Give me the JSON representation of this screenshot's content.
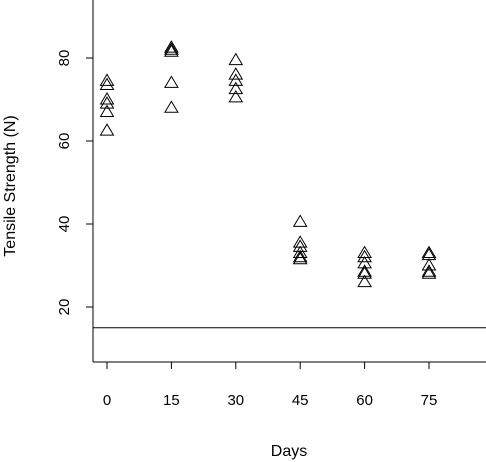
{
  "chart_data": {
    "type": "scatter",
    "title": "",
    "xlabel": "Days",
    "ylabel": "Tensile Strength (N)",
    "marker": "triangle-open",
    "xlim": [
      -3,
      91
    ],
    "ylim": [
      15,
      95
    ],
    "xticks": [
      0,
      15,
      30,
      45,
      60,
      75
    ],
    "yticks": [
      20,
      40,
      60,
      80
    ],
    "grid": false,
    "reference_line": {
      "y": 15,
      "label": ""
    },
    "series": [
      {
        "points": [
          {
            "x": 0,
            "y": 74.5
          },
          {
            "x": 0,
            "y": 73.5
          },
          {
            "x": 0,
            "y": 70.0
          },
          {
            "x": 0,
            "y": 69.0
          },
          {
            "x": 0,
            "y": 67.0
          },
          {
            "x": 0,
            "y": 62.5
          },
          {
            "x": 15,
            "y": 82.5
          },
          {
            "x": 15,
            "y": 82.0
          },
          {
            "x": 15,
            "y": 81.5
          },
          {
            "x": 15,
            "y": 74.0
          },
          {
            "x": 15,
            "y": 68.0
          },
          {
            "x": 30,
            "y": 79.5
          },
          {
            "x": 30,
            "y": 76.0
          },
          {
            "x": 30,
            "y": 74.5
          },
          {
            "x": 30,
            "y": 72.5
          },
          {
            "x": 30,
            "y": 70.5
          },
          {
            "x": 45,
            "y": 40.5
          },
          {
            "x": 45,
            "y": 35.5
          },
          {
            "x": 45,
            "y": 34.5
          },
          {
            "x": 45,
            "y": 33.0
          },
          {
            "x": 45,
            "y": 32.0
          },
          {
            "x": 45,
            "y": 31.5
          },
          {
            "x": 60,
            "y": 33.0
          },
          {
            "x": 60,
            "y": 32.0
          },
          {
            "x": 60,
            "y": 30.5
          },
          {
            "x": 60,
            "y": 28.5
          },
          {
            "x": 60,
            "y": 28.0
          },
          {
            "x": 60,
            "y": 26.0
          },
          {
            "x": 75,
            "y": 33.0
          },
          {
            "x": 75,
            "y": 32.5
          },
          {
            "x": 75,
            "y": 30.0
          },
          {
            "x": 75,
            "y": 28.5
          },
          {
            "x": 75,
            "y": 28.0
          }
        ]
      }
    ]
  }
}
